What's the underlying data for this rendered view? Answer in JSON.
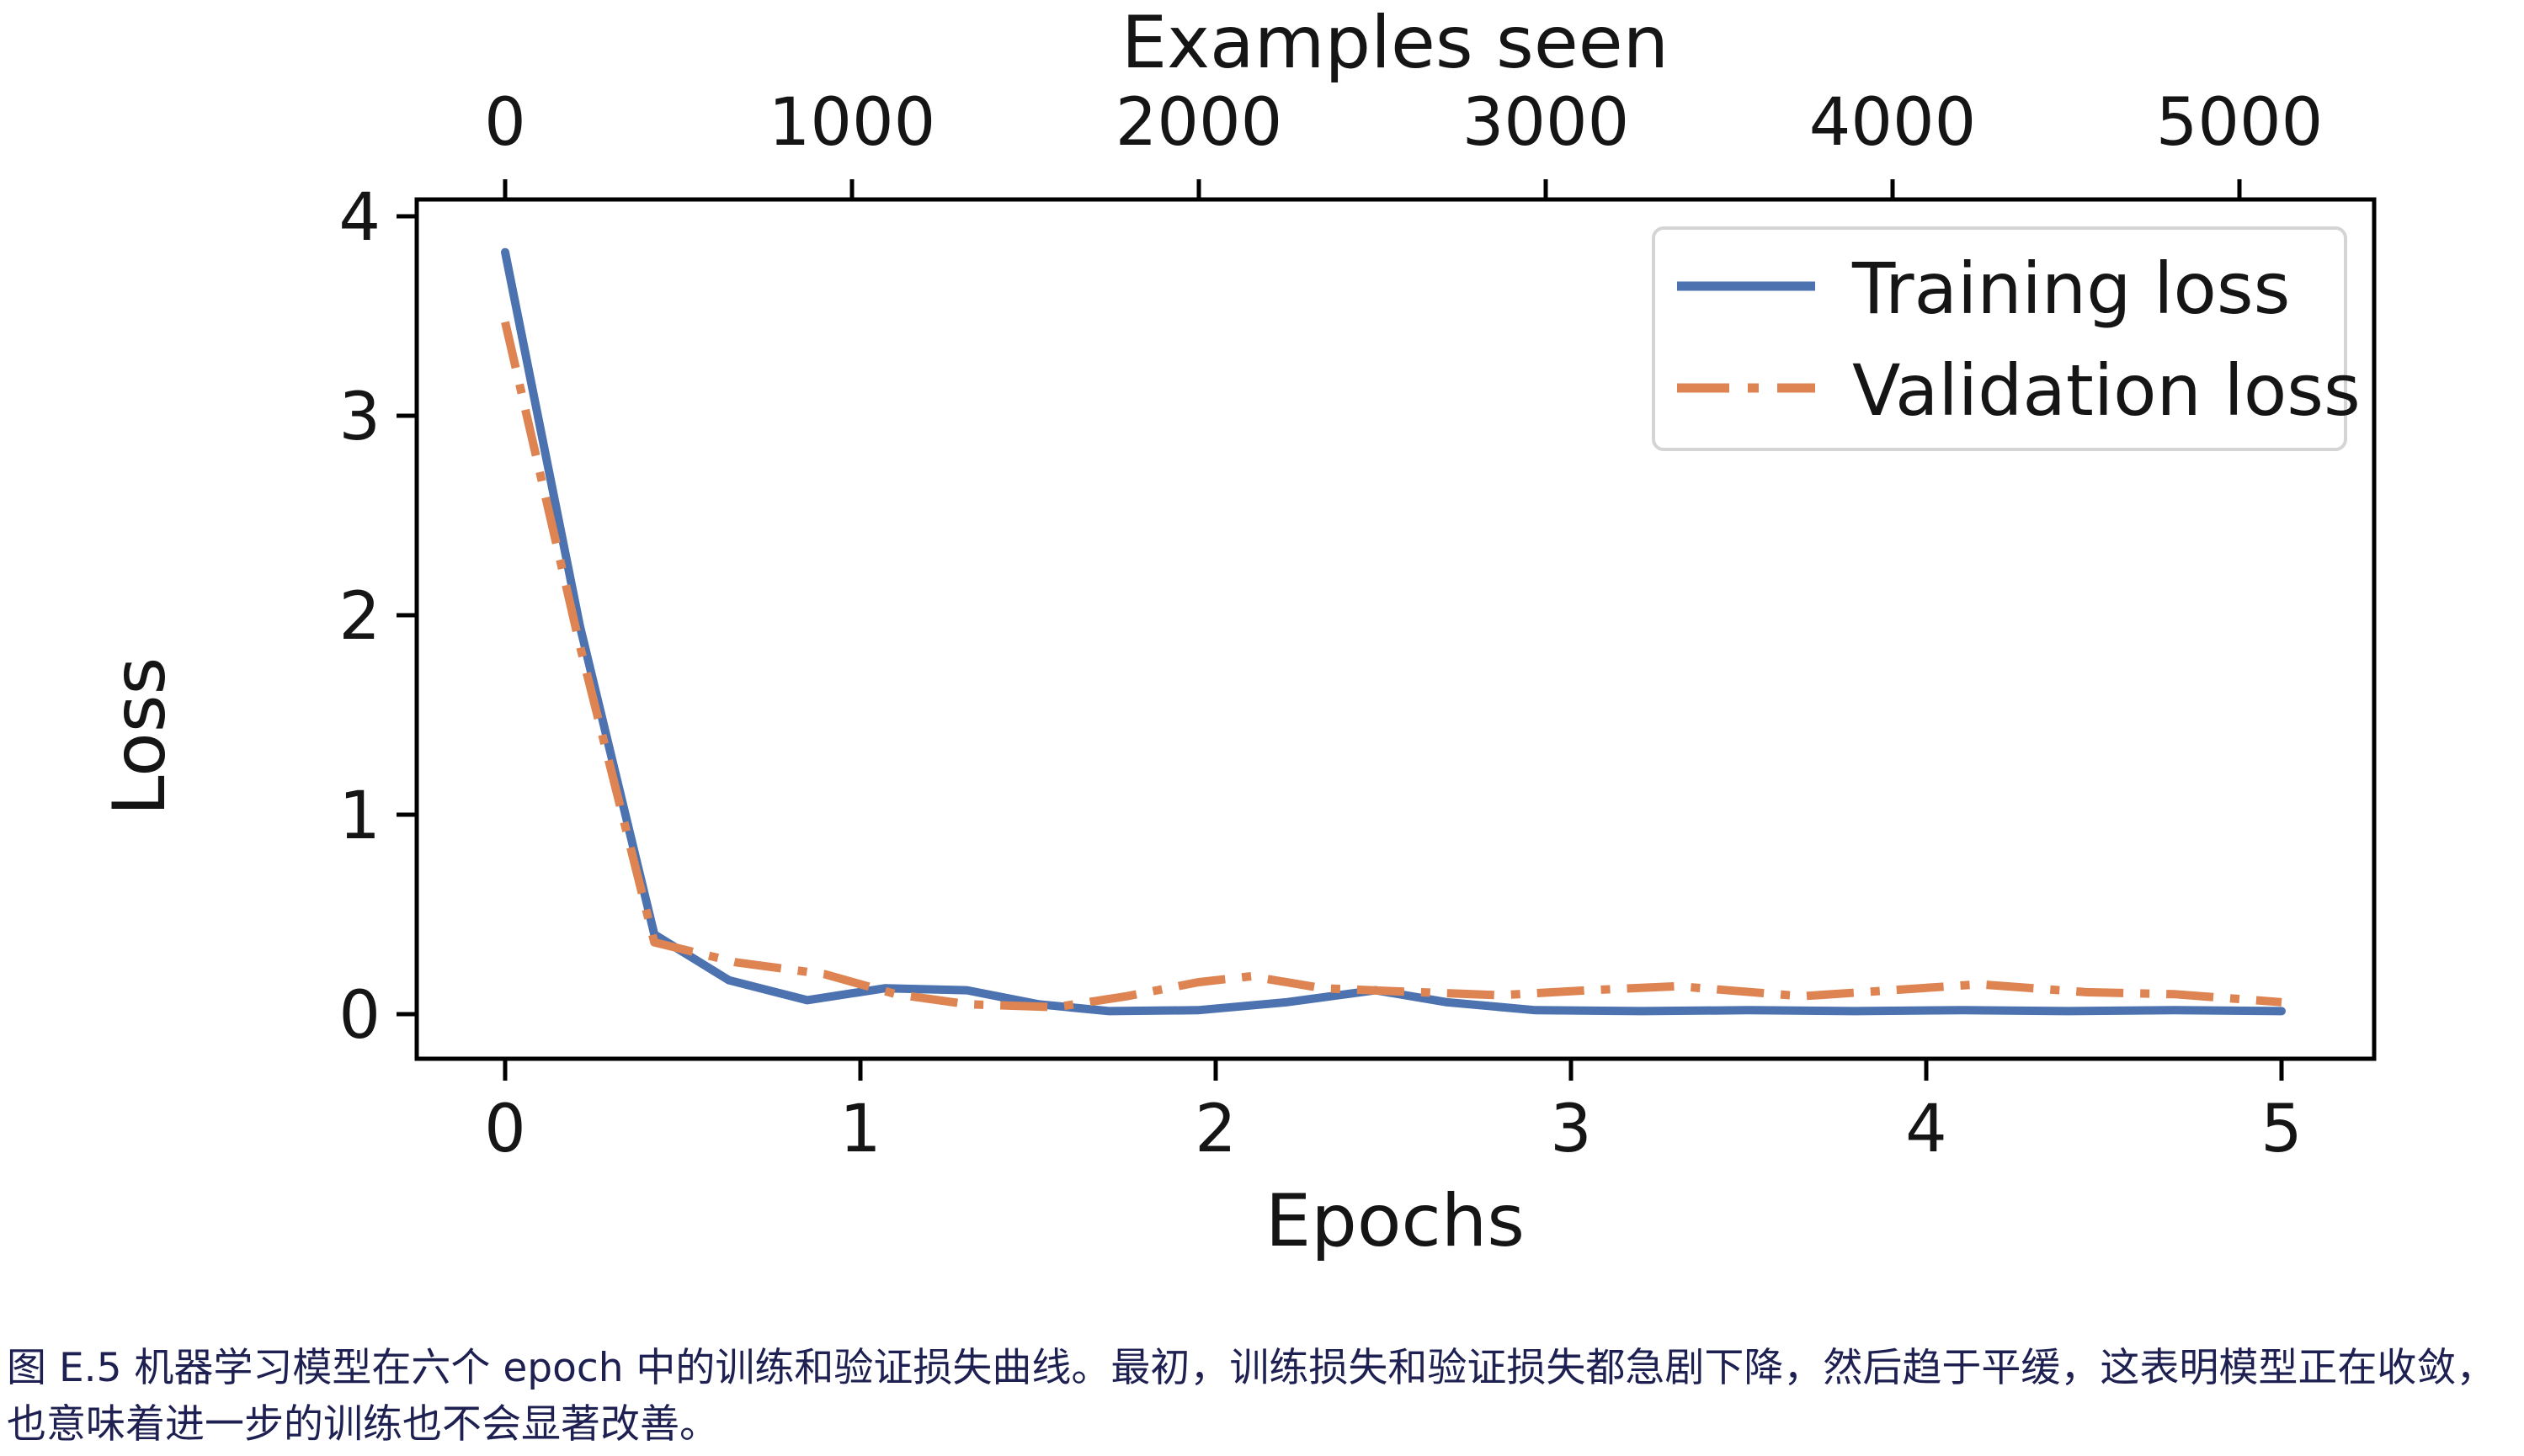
{
  "figure": {
    "caption": "图 E.5 机器学习模型在六个 epoch 中的训练和验证损失曲线。最初，训练损失和验证损失都急剧下降，然后趋于平缓，这表明模型正在收敛，也意味着进一步的训练也不会显著改善。"
  },
  "chart_data": {
    "type": "line",
    "title": "",
    "xlabel": "Epochs",
    "ylabel": "Loss",
    "top_xlabel": "Examples seen",
    "xlim": [
      -0.25,
      5.26
    ],
    "ylim": [
      -0.22,
      4.08
    ],
    "top_xlim_examples": [
      -610,
      5385
    ],
    "x_ticks_bottom": [
      "0",
      "1",
      "2",
      "3",
      "4",
      "5"
    ],
    "x_ticks_top": [
      "0",
      "1000",
      "2000",
      "3000",
      "4000",
      "5000"
    ],
    "y_ticks": [
      "0",
      "1",
      "2",
      "3",
      "4"
    ],
    "grid": false,
    "legend_position": "upper right",
    "legend_border_color": "#d4d4d4",
    "spine_color": "#000000",
    "series": [
      {
        "name": "Training loss",
        "color": "#4c72b0",
        "style": "solid",
        "points": [
          [
            0.0,
            3.82
          ],
          [
            0.21,
            1.95
          ],
          [
            0.42,
            0.4
          ],
          [
            0.63,
            0.17
          ],
          [
            0.85,
            0.07
          ],
          [
            1.07,
            0.13
          ],
          [
            1.3,
            0.12
          ],
          [
            1.5,
            0.05
          ],
          [
            1.7,
            0.015
          ],
          [
            1.95,
            0.02
          ],
          [
            2.2,
            0.06
          ],
          [
            2.45,
            0.12
          ],
          [
            2.65,
            0.06
          ],
          [
            2.9,
            0.02
          ],
          [
            3.2,
            0.015
          ],
          [
            3.5,
            0.02
          ],
          [
            3.8,
            0.015
          ],
          [
            4.1,
            0.02
          ],
          [
            4.4,
            0.015
          ],
          [
            4.7,
            0.02
          ],
          [
            5.0,
            0.015
          ]
        ]
      },
      {
        "name": "Validation loss",
        "color": "#dd8452",
        "style": "dashdot",
        "points": [
          [
            0.0,
            3.47
          ],
          [
            0.21,
            1.85
          ],
          [
            0.42,
            0.36
          ],
          [
            0.65,
            0.26
          ],
          [
            0.9,
            0.2
          ],
          [
            1.1,
            0.1
          ],
          [
            1.3,
            0.05
          ],
          [
            1.55,
            0.035
          ],
          [
            1.75,
            0.09
          ],
          [
            1.95,
            0.16
          ],
          [
            2.1,
            0.19
          ],
          [
            2.3,
            0.13
          ],
          [
            2.5,
            0.115
          ],
          [
            2.8,
            0.095
          ],
          [
            3.05,
            0.12
          ],
          [
            3.3,
            0.14
          ],
          [
            3.65,
            0.09
          ],
          [
            3.9,
            0.12
          ],
          [
            4.15,
            0.15
          ],
          [
            4.45,
            0.11
          ],
          [
            4.7,
            0.1
          ],
          [
            5.0,
            0.06
          ]
        ]
      }
    ]
  }
}
